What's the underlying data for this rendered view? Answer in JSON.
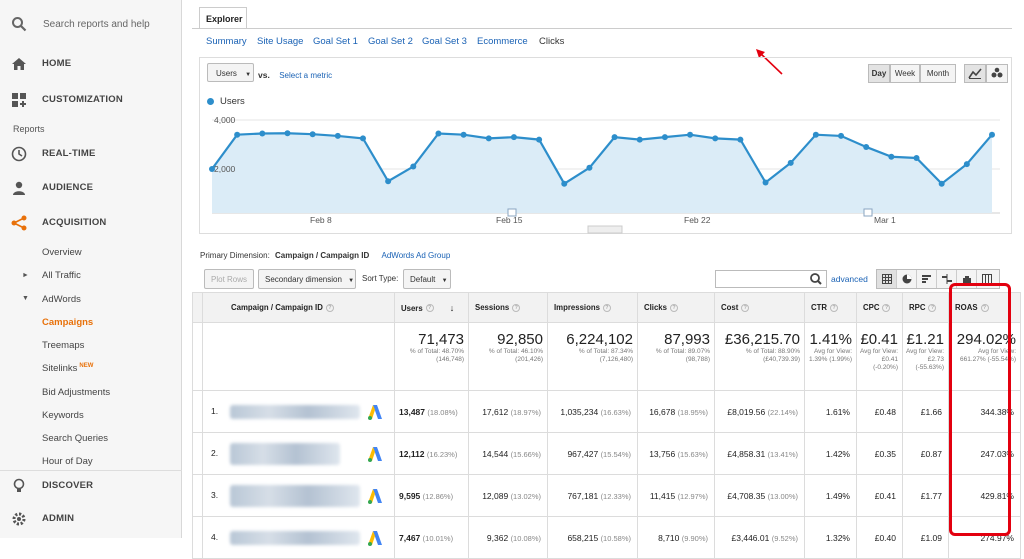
{
  "sidebar": {
    "search_placeholder": "Search reports and help",
    "home": "HOME",
    "customization": "CUSTOMIZATION",
    "reports": "Reports",
    "realtime": "REAL-TIME",
    "audience": "AUDIENCE",
    "acquisition": "ACQUISITION",
    "overview": "Overview",
    "all_traffic": "All Traffic",
    "adwords": "AdWords",
    "campaigns": "Campaigns",
    "treemaps": "Treemaps",
    "sitelinks": "Sitelinks",
    "new_badge": "NEW",
    "bid_adjustments": "Bid Adjustments",
    "keywords": "Keywords",
    "search_queries": "Search Queries",
    "hour_of_day": "Hour of Day",
    "discover": "DISCOVER",
    "admin": "ADMIN",
    "accent_color": "#e8710a"
  },
  "explorer": {
    "tab": "Explorer",
    "subtabs": [
      "Summary",
      "Site Usage",
      "Goal Set 1",
      "Goal Set 2",
      "Goal Set 3",
      "Ecommerce",
      "Clicks"
    ],
    "active_subtab": "Clicks"
  },
  "chart_controls": {
    "metric": "Users",
    "vs": "vs.",
    "select_metric": "Select a metric",
    "day": "Day",
    "week": "Week",
    "month": "Month",
    "active_period": "Day"
  },
  "chart_data": {
    "type": "line",
    "series": [
      {
        "name": "Users",
        "values": [
          2000,
          3400,
          3450,
          3460,
          3420,
          3350,
          3250,
          1500,
          2100,
          3450,
          3400,
          3250,
          3300,
          3200,
          1400,
          2050,
          3300,
          3200,
          3300,
          3400,
          3250,
          3200,
          1450,
          2250,
          3400,
          3350,
          2900,
          2500,
          2450,
          1400,
          2200,
          3400
        ]
      }
    ],
    "y_ticks": [
      "4,000",
      "2,000"
    ],
    "ylim": [
      0,
      4000
    ],
    "x_labels": [
      "Feb 8",
      "Feb 15",
      "Feb 22",
      "Mar 1"
    ],
    "line_color": "#2d8ecb",
    "fill_color": "#dbecf7"
  },
  "table_controls": {
    "primary_dimension_label": "Primary Dimension:",
    "primary_dimension": "Campaign / Campaign ID",
    "alt_dimension": "AdWords Ad Group",
    "plot_rows": "Plot Rows",
    "secondary_dimension": "Secondary dimension",
    "sort_type_label": "Sort Type:",
    "sort_type": "Default",
    "advanced": "advanced"
  },
  "table": {
    "headers": [
      "Campaign / Campaign ID",
      "Users",
      "Sessions",
      "Impressions",
      "Clicks",
      "Cost",
      "CTR",
      "CPC",
      "RPC",
      "ROAS"
    ],
    "totals": [
      {
        "big": "71,473",
        "small": "% of Total: 48.70% (146,748)"
      },
      {
        "big": "92,850",
        "small": "% of Total: 46.10% (201,426)"
      },
      {
        "big": "6,224,102",
        "small": "% of Total: 87.34% (7,126,480)"
      },
      {
        "big": "87,993",
        "small": "% of Total: 89.07% (98,788)"
      },
      {
        "big": "£36,215.70",
        "small": "% of Total: 88.90% (£40,739.39)"
      },
      {
        "big": "1.41%",
        "small": "Avg for View: 1.39% (1.99%)"
      },
      {
        "big": "£0.41",
        "small": "Avg for View: £0.41 (-0.20%)"
      },
      {
        "big": "£1.21",
        "small": "Avg for View: £2.73 (-55.63%)"
      },
      {
        "big": "294.02%",
        "small": "Avg for View: 661.27% (-55.54%)"
      }
    ],
    "rows": [
      {
        "num": "1.",
        "users": "13,487",
        "users_p": "(18.08%)",
        "sessions": "17,612",
        "sessions_p": "(18.97%)",
        "impressions": "1,035,234",
        "impressions_p": "(16.63%)",
        "clicks": "16,678",
        "clicks_p": "(18.95%)",
        "cost": "£8,019.56",
        "cost_p": "(22.14%)",
        "ctr": "1.61%",
        "cpc": "£0.48",
        "rpc": "£1.66",
        "roas": "344.38%"
      },
      {
        "num": "2.",
        "users": "12,112",
        "users_p": "(16.23%)",
        "sessions": "14,544",
        "sessions_p": "(15.66%)",
        "impressions": "967,427",
        "impressions_p": "(15.54%)",
        "clicks": "13,756",
        "clicks_p": "(15.63%)",
        "cost": "£4,858.31",
        "cost_p": "(13.41%)",
        "ctr": "1.42%",
        "cpc": "£0.35",
        "rpc": "£0.87",
        "roas": "247.03%"
      },
      {
        "num": "3.",
        "users": "9,595",
        "users_p": "(12.86%)",
        "sessions": "12,089",
        "sessions_p": "(13.02%)",
        "impressions": "767,181",
        "impressions_p": "(12.33%)",
        "clicks": "11,415",
        "clicks_p": "(12.97%)",
        "cost": "£4,708.35",
        "cost_p": "(13.00%)",
        "ctr": "1.49%",
        "cpc": "£0.41",
        "rpc": "£1.77",
        "roas": "429.81%"
      },
      {
        "num": "4.",
        "users": "7,467",
        "users_p": "(10.01%)",
        "sessions": "9,362",
        "sessions_p": "(10.08%)",
        "impressions": "658,215",
        "impressions_p": "(10.58%)",
        "clicks": "8,710",
        "clicks_p": "(9.90%)",
        "cost": "£3,446.01",
        "cost_p": "(9.52%)",
        "ctr": "1.32%",
        "cpc": "£0.40",
        "rpc": "£1.09",
        "roas": "274.97%"
      }
    ]
  }
}
